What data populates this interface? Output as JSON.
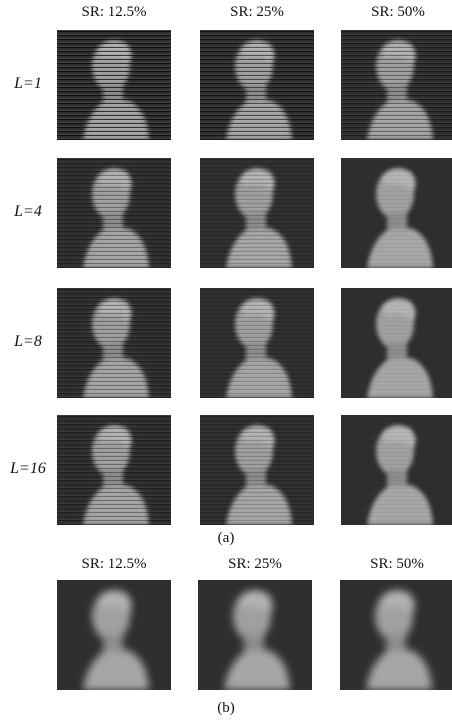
{
  "panel_a": {
    "columns": [
      "SR: 12.5%",
      "SR: 25%",
      "SR: 50%"
    ],
    "rows": [
      "L=1",
      "L=4",
      "L=8",
      "L=16"
    ],
    "caption": "(a)"
  },
  "panel_b": {
    "columns": [
      "SR: 12.5%",
      "SR: 25%",
      "SR: 50%"
    ],
    "caption": "(b)"
  }
}
